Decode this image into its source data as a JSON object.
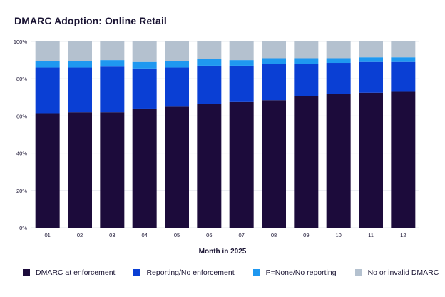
{
  "chart_data": {
    "type": "bar",
    "stacked": true,
    "title": "DMARC Adoption: Online Retail",
    "xlabel": "Month in 2025",
    "ylabel": "",
    "ylim": [
      0,
      100
    ],
    "yticks": [
      0,
      20,
      40,
      60,
      80,
      100
    ],
    "ytick_labels": [
      "0%",
      "20%",
      "40%",
      "60%",
      "80%",
      "100%"
    ],
    "categories": [
      "01",
      "02",
      "03",
      "04",
      "05",
      "06",
      "07",
      "08",
      "09",
      "10",
      "11",
      "12"
    ],
    "series": [
      {
        "name": "DMARC at enforcement",
        "color": "#1c0b3b",
        "values": [
          61.5,
          62,
          62,
          64,
          65,
          66.5,
          67.5,
          68.5,
          70.5,
          72,
          72.5,
          73
        ]
      },
      {
        "name": "Reporting/No enforcement",
        "color": "#0a3fd4",
        "values": [
          24.5,
          24,
          24.5,
          21.5,
          21,
          20.5,
          19.5,
          19.5,
          17.5,
          16.5,
          16.5,
          16
        ]
      },
      {
        "name": "P=None/No reporting",
        "color": "#1f98f0",
        "values": [
          3.5,
          3.5,
          3.5,
          3.5,
          3.5,
          3.5,
          3,
          3,
          3,
          2.5,
          2.5,
          2.5
        ]
      },
      {
        "name": "No or invalid DMARC",
        "color": "#b4c1cf",
        "values": [
          10.5,
          10.5,
          10,
          11,
          10.5,
          9.5,
          10,
          9,
          9,
          9,
          8.5,
          8.5
        ]
      }
    ],
    "legend_position": "bottom"
  }
}
